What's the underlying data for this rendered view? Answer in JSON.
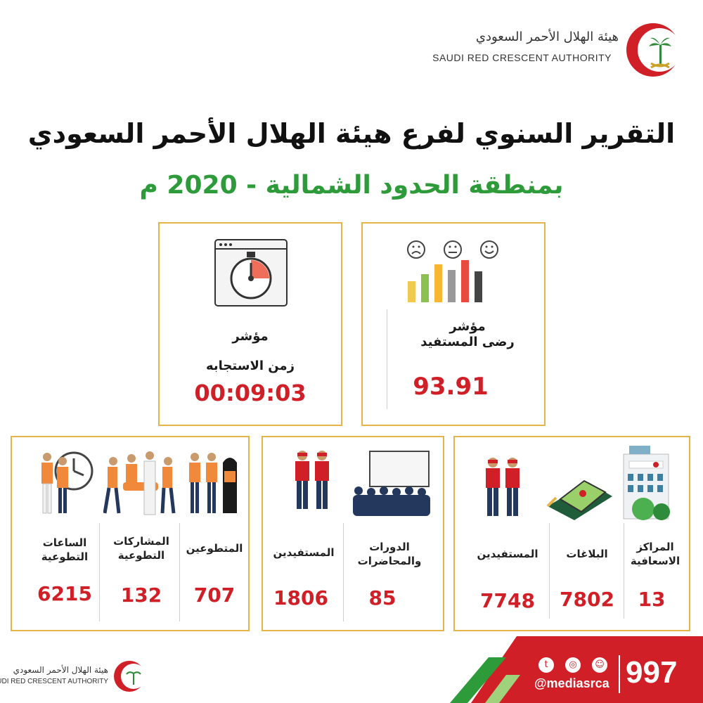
{
  "header": {
    "org_ar": "هيئة الهلال الأحمر السعودي",
    "org_en": "SAUDI RED CRESCENT AUTHORITY"
  },
  "title": {
    "line1": "التقرير السنوي لفرع هيئة الهلال الأحمر السعودي",
    "line2": "بمنطقة الحدود الشمالية  - 2020 م"
  },
  "satisfaction": {
    "label1": "مؤشر",
    "label2": "رضى المستفيد",
    "value": "93.91"
  },
  "response": {
    "label1": "مؤشر",
    "label2": "زمن الاستجابه",
    "value": "00:09:03"
  },
  "centers_card": {
    "items": [
      {
        "label": "المراكز الاسعافية",
        "value": "13"
      },
      {
        "label": "البلاغات",
        "value": "7802"
      },
      {
        "label": "المستفيدين",
        "value": "7748"
      }
    ]
  },
  "courses_card": {
    "items": [
      {
        "label": "الدورات والمحاضرات",
        "value": "85"
      },
      {
        "label": "المستفيدين",
        "value": "1806"
      }
    ]
  },
  "volunteer_card": {
    "items": [
      {
        "label": "المتطوعين",
        "value": "707"
      },
      {
        "label": "المشاركات التطوعية",
        "value": "132"
      },
      {
        "label": "الساعات التطوعية",
        "value": "6215"
      }
    ]
  },
  "footer": {
    "org_ar": "هيئة الهلال الأحمر السعودي",
    "org_en": "SAUDI RED CRESCENT AUTHORITY",
    "handle": "@mediasrca",
    "hotline": "997"
  },
  "colors": {
    "accent_red": "#d01f26",
    "card_border": "#e6b54a",
    "title_green": "#2e9b3a"
  }
}
